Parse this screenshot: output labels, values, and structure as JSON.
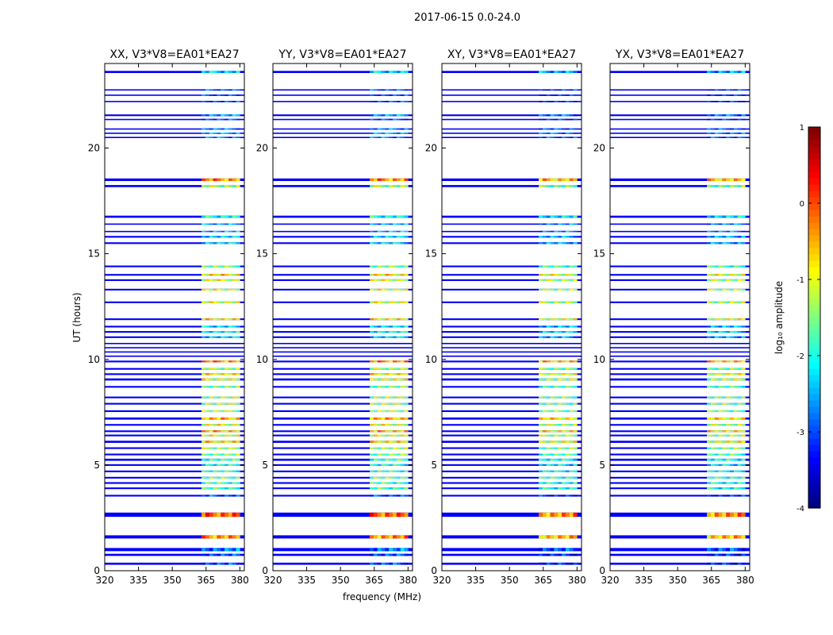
{
  "figure": {
    "suptitle": "2017-06-15 0.0-24.0"
  },
  "chart_data": {
    "type": "heatmap",
    "xlabel": "frequency (MHz)",
    "ylabel": "UT (hours)",
    "xlim": [
      320,
      382
    ],
    "ylim": [
      0,
      24
    ],
    "xticks": [
      320,
      335,
      350,
      365,
      380
    ],
    "yticks": [
      0,
      5,
      10,
      15,
      20
    ],
    "colorbar": {
      "label": "log₁₀ amplitude",
      "vmin": -4,
      "vmax": 1,
      "ticks": [
        -4,
        -3,
        -2,
        -1,
        0,
        1
      ],
      "colormap": "jet"
    },
    "panels": [
      {
        "title": "XX, V3*V8=EA01*EA27"
      },
      {
        "title": "YY, V3*V8=EA01*EA27"
      },
      {
        "title": "XY, V3*V8=EA01*EA27"
      },
      {
        "title": "YX, V3*V8=EA01*EA27"
      }
    ],
    "scans": [
      {
        "t": 0.33,
        "h": 0.1,
        "level": 0.15
      },
      {
        "t": 0.75,
        "h": 0.1,
        "level": 0.15
      },
      {
        "t": 1.0,
        "h": 0.15,
        "level": 0.2
      },
      {
        "t": 1.6,
        "h": 0.15,
        "level": 0.7
      },
      {
        "t": 2.65,
        "h": 0.2,
        "level": 0.75
      },
      {
        "t": 3.55,
        "h": 0.08,
        "level": 0.15
      },
      {
        "t": 3.9,
        "h": 0.08,
        "level": 0.4
      },
      {
        "t": 4.15,
        "h": 0.08,
        "level": 0.4
      },
      {
        "t": 4.4,
        "h": 0.08,
        "level": 0.45
      },
      {
        "t": 4.7,
        "h": 0.08,
        "level": 0.4
      },
      {
        "t": 5.0,
        "h": 0.08,
        "level": 0.35
      },
      {
        "t": 5.25,
        "h": 0.1,
        "level": 0.4
      },
      {
        "t": 5.5,
        "h": 0.08,
        "level": 0.45
      },
      {
        "t": 5.8,
        "h": 0.08,
        "level": 0.5
      },
      {
        "t": 6.1,
        "h": 0.1,
        "level": 0.6
      },
      {
        "t": 6.4,
        "h": 0.08,
        "level": 0.55
      },
      {
        "t": 6.6,
        "h": 0.08,
        "level": 0.65
      },
      {
        "t": 6.9,
        "h": 0.08,
        "level": 0.55
      },
      {
        "t": 7.2,
        "h": 0.1,
        "level": 0.65
      },
      {
        "t": 7.55,
        "h": 0.08,
        "level": 0.5
      },
      {
        "t": 7.9,
        "h": 0.08,
        "level": 0.5
      },
      {
        "t": 8.2,
        "h": 0.08,
        "level": 0.5
      },
      {
        "t": 8.7,
        "h": 0.08,
        "level": 0.45
      },
      {
        "t": 9.05,
        "h": 0.1,
        "level": 0.55
      },
      {
        "t": 9.3,
        "h": 0.08,
        "level": 0.6
      },
      {
        "t": 9.55,
        "h": 0.08,
        "level": 0.5
      },
      {
        "t": 9.9,
        "h": 0.08,
        "level": 0.7
      },
      {
        "t": 10.15,
        "h": 0.06,
        "level": 0.0
      },
      {
        "t": 10.35,
        "h": 0.06,
        "level": 0.0
      },
      {
        "t": 10.55,
        "h": 0.06,
        "level": 0.0
      },
      {
        "t": 10.75,
        "h": 0.06,
        "level": 0.0
      },
      {
        "t": 11.05,
        "h": 0.08,
        "level": 0.3
      },
      {
        "t": 11.3,
        "h": 0.08,
        "level": 0.35
      },
      {
        "t": 11.55,
        "h": 0.08,
        "level": 0.3
      },
      {
        "t": 11.9,
        "h": 0.08,
        "level": 0.6
      },
      {
        "t": 12.7,
        "h": 0.08,
        "level": 0.55
      },
      {
        "t": 13.3,
        "h": 0.08,
        "level": 0.55
      },
      {
        "t": 13.75,
        "h": 0.08,
        "level": 0.55
      },
      {
        "t": 14.0,
        "h": 0.08,
        "level": 0.6
      },
      {
        "t": 14.4,
        "h": 0.08,
        "level": 0.45
      },
      {
        "t": 15.5,
        "h": 0.08,
        "level": 0.3
      },
      {
        "t": 15.8,
        "h": 0.08,
        "level": 0.3
      },
      {
        "t": 16.05,
        "h": 0.06,
        "level": 0.25
      },
      {
        "t": 16.4,
        "h": 0.06,
        "level": 0.25
      },
      {
        "t": 16.75,
        "h": 0.1,
        "level": 0.35
      },
      {
        "t": 18.2,
        "h": 0.1,
        "level": 0.5
      },
      {
        "t": 18.5,
        "h": 0.12,
        "level": 0.7
      },
      {
        "t": 20.5,
        "h": 0.06,
        "level": 0.2
      },
      {
        "t": 20.7,
        "h": 0.06,
        "level": 0.25
      },
      {
        "t": 20.9,
        "h": 0.06,
        "level": 0.2
      },
      {
        "t": 21.35,
        "h": 0.06,
        "level": 0.15
      },
      {
        "t": 21.55,
        "h": 0.08,
        "level": 0.25
      },
      {
        "t": 22.2,
        "h": 0.06,
        "level": 0.15
      },
      {
        "t": 22.5,
        "h": 0.06,
        "level": 0.15
      },
      {
        "t": 22.75,
        "h": 0.06,
        "level": 0.15
      },
      {
        "t": 23.6,
        "h": 0.1,
        "level": 0.3
      }
    ],
    "bright_band_mhz": [
      363,
      380
    ]
  }
}
